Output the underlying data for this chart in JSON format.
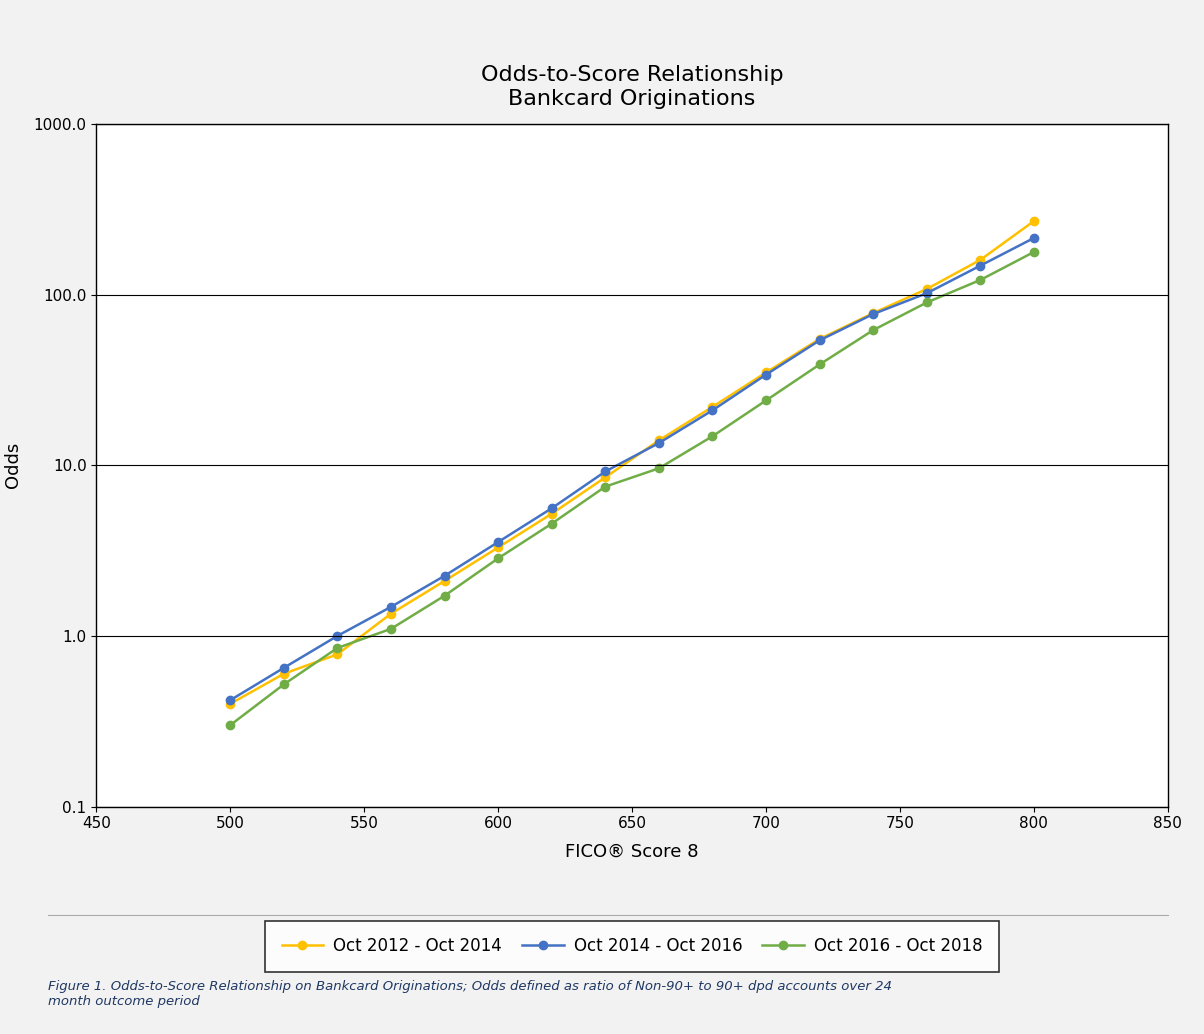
{
  "title_line1": "Odds-to-Score Relationship",
  "title_line2": "Bankcard Originations",
  "xlabel": "FICO® Score 8",
  "ylabel": "Odds",
  "xlim": [
    450,
    850
  ],
  "ylim": [
    0.1,
    1000.0
  ],
  "xticks": [
    450,
    500,
    550,
    600,
    650,
    700,
    750,
    800,
    850
  ],
  "yticks": [
    0.1,
    1.0,
    10.0,
    100.0,
    1000.0
  ],
  "ytick_labels": [
    "0.1",
    "1.0",
    "10.0",
    "100.0",
    "1000.0"
  ],
  "series": [
    {
      "label": "Oct 2012 - Oct 2014",
      "color": "#FFC000",
      "x": [
        500,
        520,
        540,
        560,
        580,
        600,
        620,
        640,
        660,
        680,
        700,
        720,
        740,
        760,
        780,
        800
      ],
      "y": [
        0.4,
        0.6,
        0.78,
        1.35,
        2.1,
        3.3,
        5.2,
        8.5,
        14.0,
        22.0,
        35.0,
        55.0,
        78.0,
        108.0,
        160.0,
        270.0
      ]
    },
    {
      "label": "Oct 2014 - Oct 2016",
      "color": "#4472C4",
      "x": [
        500,
        520,
        540,
        560,
        580,
        600,
        620,
        640,
        660,
        680,
        700,
        720,
        740,
        760,
        780,
        800
      ],
      "y": [
        0.42,
        0.65,
        1.0,
        1.48,
        2.25,
        3.55,
        5.6,
        9.2,
        13.5,
        21.0,
        34.0,
        54.0,
        77.0,
        102.0,
        148.0,
        215.0
      ]
    },
    {
      "label": "Oct 2016 - Oct 2018",
      "color": "#70AD47",
      "x": [
        500,
        520,
        540,
        560,
        580,
        600,
        620,
        640,
        660,
        680,
        700,
        720,
        740,
        760,
        780,
        800
      ],
      "y": [
        0.3,
        0.52,
        0.85,
        1.1,
        1.72,
        2.85,
        4.55,
        7.5,
        9.6,
        14.8,
        24.0,
        39.0,
        62.0,
        90.0,
        122.0,
        178.0
      ]
    }
  ],
  "caption": "Figure 1. Odds-to-Score Relationship on Bankcard Originations; Odds defined as ratio of Non-90+ to 90+ dpd accounts over 24\nmonth outcome period",
  "outer_bg_color": "#F2F2F2",
  "plot_bg_color": "#FFFFFF",
  "grid_color": "#000000",
  "legend_fontsize": 12,
  "title_fontsize": 16,
  "axis_label_fontsize": 13,
  "tick_fontsize": 11,
  "marker": "o",
  "markersize": 6,
  "linewidth": 1.8
}
